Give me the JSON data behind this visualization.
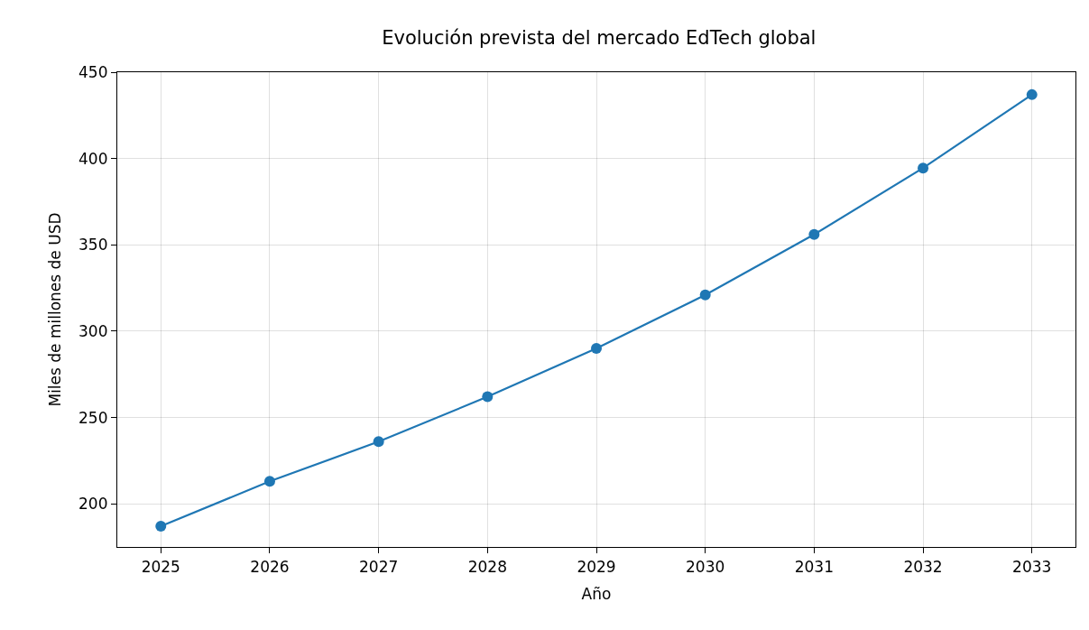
{
  "chart_data": {
    "type": "line",
    "title": "Evolución prevista del mercado EdTech global",
    "xlabel": "Año",
    "ylabel": "Miles de millones de USD",
    "x": [
      2025,
      2026,
      2027,
      2028,
      2029,
      2030,
      2031,
      2032,
      2033
    ],
    "series": [
      {
        "color": "#1f77b4",
        "values": [
          187,
          213,
          236,
          262,
          290,
          321,
          356,
          394.5,
          437
        ]
      }
    ],
    "xlim": [
      2024.6,
      2033.4
    ],
    "xticks": [
      2025,
      2026,
      2027,
      2028,
      2029,
      2030,
      2031,
      2032,
      2033
    ],
    "ylim": [
      175,
      450
    ],
    "yticks": [
      200,
      250,
      300,
      350,
      400,
      450
    ],
    "grid": true,
    "marker": "circle",
    "line_style": "solid"
  }
}
